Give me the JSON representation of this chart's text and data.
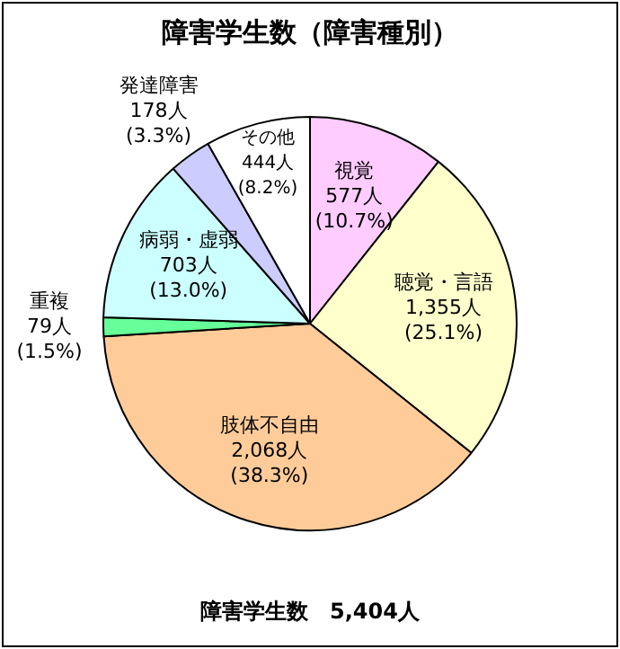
{
  "chart_data": {
    "type": "pie",
    "title": "障害学生数（障害種別）",
    "categories": [
      "視覚",
      "聴覚・言語",
      "肢体不自由",
      "重複",
      "病弱・虚弱",
      "発達障害",
      "その他"
    ],
    "values": [
      577,
      1355,
      2068,
      79,
      703,
      178,
      444
    ],
    "colors": [
      "#ffccff",
      "#ffffcc",
      "#ffcc99",
      "#66ff99",
      "#ccffff",
      "#ccccff",
      "#ffffff"
    ],
    "value_labels": [
      "577人\n(10.7%)",
      "1,355人\n(25.1%)",
      "2,068人\n(38.3%)",
      "79人\n(1.5%)",
      "703人\n(13.0%)",
      "178人\n(3.3%)",
      "444人\n(8.2%)"
    ],
    "annotations": [
      "障害学生数　5,404人"
    ],
    "legend": false
  }
}
